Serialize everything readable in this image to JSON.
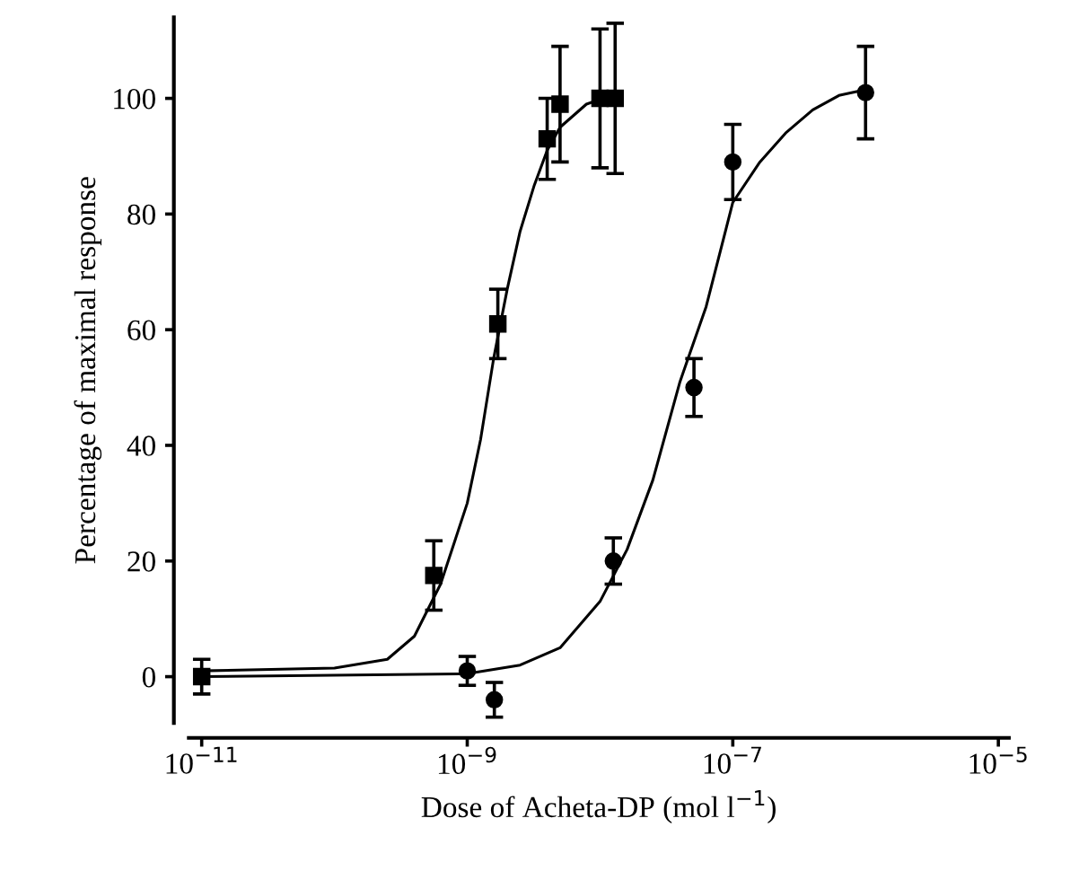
{
  "chart_data": {
    "type": "scatter",
    "xlabel": "Dose of Acheta-DP (mol l$^{−1}$)",
    "ylabel": "Percentage of maximal response",
    "log": "x",
    "xlim": [
      8e-12,
      1.2e-05
    ],
    "ylim": [
      -8,
      114
    ],
    "xticks": [
      {
        "value": 1e-11,
        "label": "10$^{−11}$"
      },
      {
        "value": 1e-09,
        "label": "10$^{−9}$"
      },
      {
        "value": 1e-07,
        "label": "10$^{−7}$"
      },
      {
        "value": 1e-05,
        "label": "10$^{−5}$"
      }
    ],
    "yticks": [
      0,
      20,
      40,
      60,
      80,
      100
    ],
    "grid": false,
    "legend": false,
    "series": [
      {
        "marker": "square",
        "color": "#000000",
        "x": [
          1e-11,
          5.6e-10,
          1.7e-09,
          4e-09,
          5e-09,
          1e-08,
          1.3e-08
        ],
        "values": [
          0,
          17.5,
          61,
          93,
          99,
          100,
          100
        ],
        "errors": [
          3,
          6,
          6,
          7,
          10,
          12,
          13
        ]
      },
      {
        "marker": "circle",
        "color": "#000000",
        "x": [
          1e-09,
          1.6e-09,
          1.26e-08,
          5.1e-08,
          1e-07,
          1e-06
        ],
        "values": [
          1,
          -4,
          20,
          50,
          89,
          101
        ],
        "errors": [
          2.5,
          3,
          4,
          5,
          6.5,
          8
        ]
      },
      {
        "type": "line",
        "marker": "none",
        "color": "#000000",
        "x": [
          1e-11,
          1e-10,
          2.5e-10,
          4e-10,
          6.3e-10,
          1e-09,
          1.26e-09,
          1.58e-09,
          2e-09,
          2.5e-09,
          3.2e-09,
          4e-09,
          5e-09,
          7.9e-09,
          1.4e-08
        ],
        "values": [
          1,
          1.5,
          3,
          7,
          16,
          30,
          41,
          55,
          67,
          77,
          85,
          91,
          95,
          99,
          101
        ]
      },
      {
        "type": "line",
        "marker": "none",
        "color": "#000000",
        "x": [
          1e-11,
          1e-09,
          2.5e-09,
          5e-09,
          1e-08,
          1.6e-08,
          2.5e-08,
          4e-08,
          6.3e-08,
          1e-07,
          1.6e-07,
          2.5e-07,
          4e-07,
          6.3e-07,
          1e-06
        ],
        "values": [
          0,
          0.5,
          2,
          5,
          13,
          22,
          34,
          51,
          64,
          82,
          89,
          94,
          98,
          100.5,
          101.5
        ]
      }
    ]
  }
}
